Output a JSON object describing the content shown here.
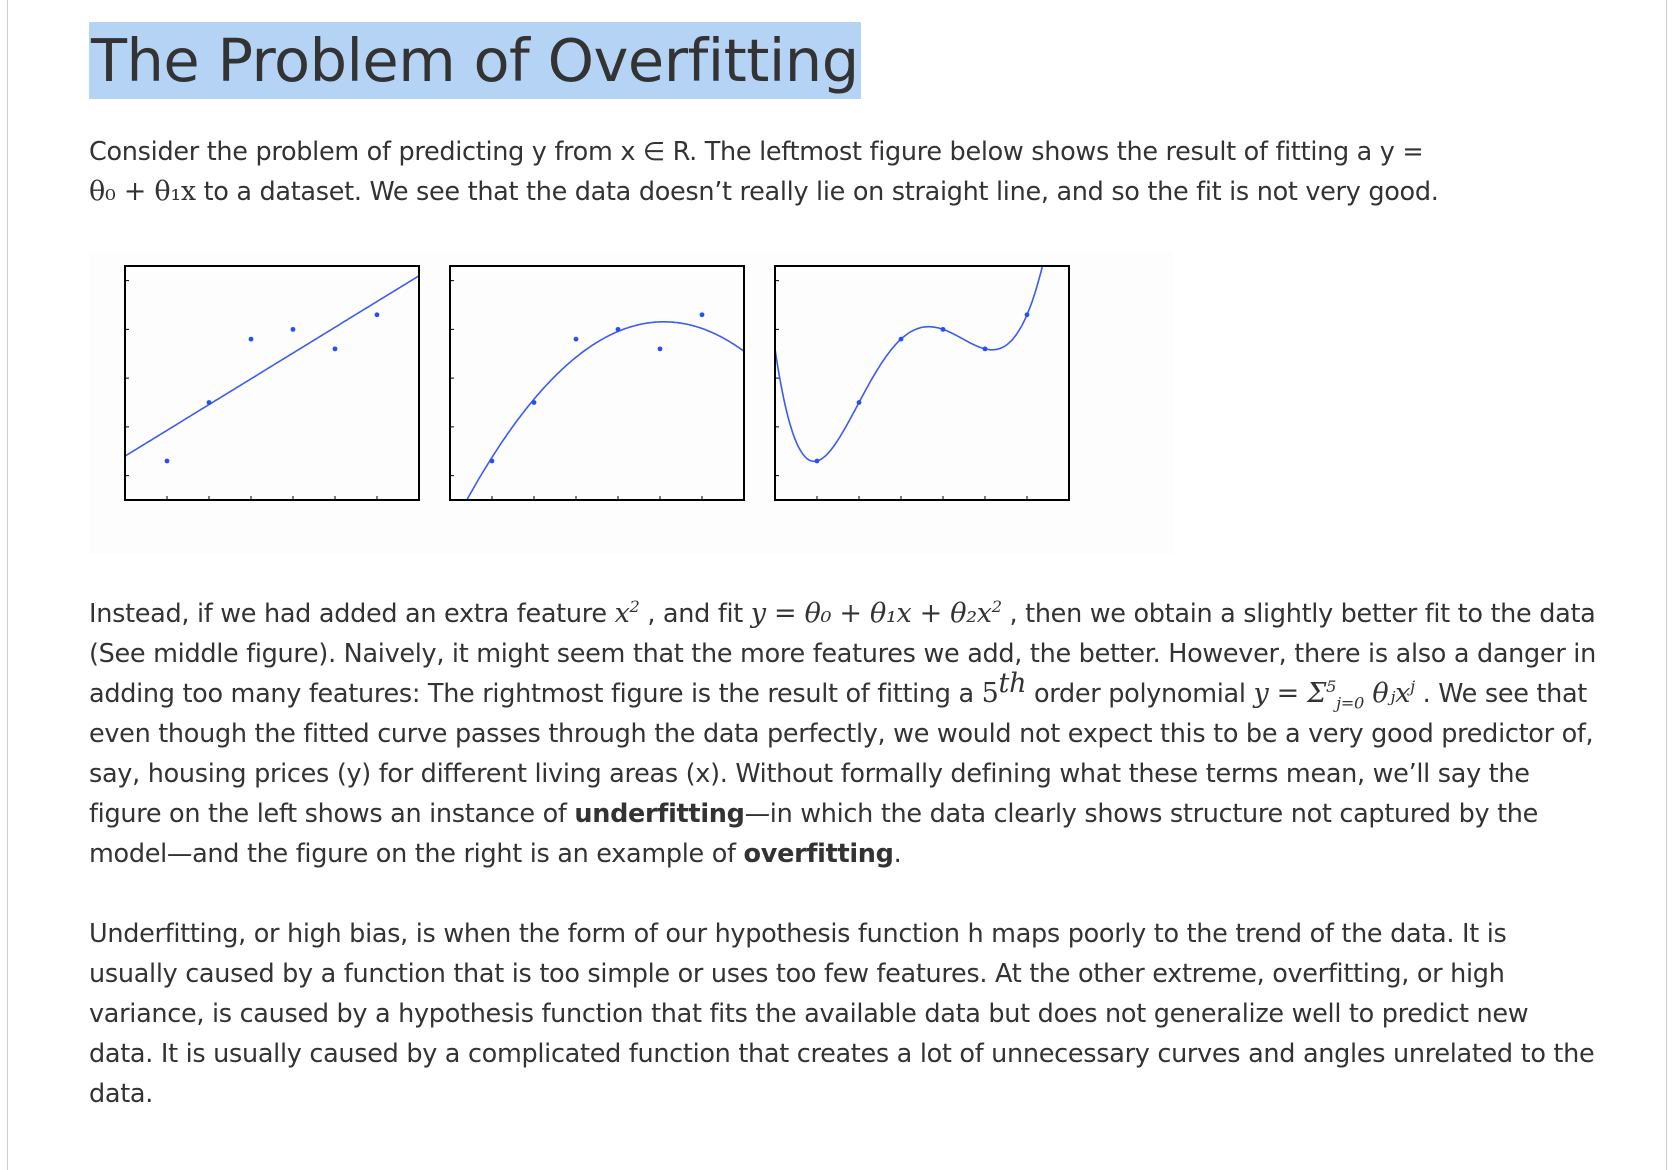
{
  "title": "The Problem of Overfitting",
  "para1": {
    "before_math": "Consider the problem of predicting y from x ∈ R. The leftmost figure below shows the result of fitting a y =",
    "math": "θ₀ + θ₁x",
    "after_math": " to a dataset. We see that the data doesn’t really lie on straight line, and so the fit is not very good."
  },
  "para2": {
    "t1": "Instead, if we had added an extra feature ",
    "m1": "x",
    "m1_sup": "2",
    "t2": " , and fit ",
    "m2": "y = θ₀ + θ₁x + θ₂x",
    "m2_sup": "2",
    "t3": " , then we obtain a slightly better fit to the data (See middle figure). Naively, it might seem that the more features we add, the better. However, there is also a danger in adding too many features: The rightmost figure is the result of fitting a ",
    "m3": "5",
    "m3_sup": "th",
    "t4": "  order polynomial ",
    "m4": "y = Σ",
    "m4_sup": "5",
    "m4_sub": "j=0",
    "m4b": " θⱼx",
    "m4b_sup": "j",
    "t5": " . We see that even though the fitted curve passes through the data perfectly, we would not expect this to be a very good predictor of, say, housing prices (y) for different living areas (x). Without formally defining what these terms mean, we’ll say the figure on the left shows an instance of ",
    "b1": "underfitting",
    "t6": "—in which the data clearly shows structure not captured by the model—and the figure on the right is an example of ",
    "b2": "overfitting",
    "t7": "."
  },
  "para3": "Underfitting, or high bias, is when the form of our hypothesis function h maps poorly to the trend of the data. It is usually caused by a function that is too simple or uses too few features. At the other extreme, overfitting, or high variance, is caused by a hypothesis function that fits the available data but does not generalize well to predict new data. It is usually caused by a complicated function that creates a lot of unnecessary curves and angles unrelated to the data.",
  "figure": {
    "colors": {
      "curve": "#3a5cf0",
      "point": "#2a4ef5",
      "frame": "#000000"
    },
    "points": [
      [
        1,
        1.3
      ],
      [
        2,
        2.5
      ],
      [
        3,
        3.8
      ],
      [
        4,
        4.0
      ],
      [
        5,
        3.6
      ],
      [
        6,
        4.3
      ]
    ],
    "xlim": [
      0,
      7
    ],
    "ylim": [
      0.5,
      5.3
    ]
  }
}
